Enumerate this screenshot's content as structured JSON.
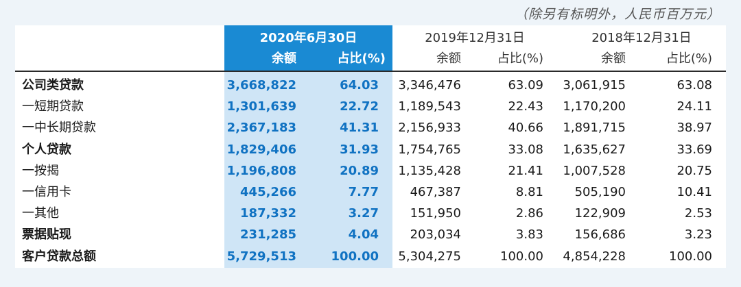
{
  "note": "（除另有标明外，人民币百万元）",
  "headers": {
    "col1": "2020年6月30日",
    "col2": "2019年12月31日",
    "col3": "2018年12月31日",
    "amount": "余额",
    "ratio": "占比(%)"
  },
  "rows": [
    {
      "label": "公司类贷款",
      "bold": true,
      "v": [
        "3,668,822",
        "64.03",
        "3,346,476",
        "63.09",
        "3,061,915",
        "63.08"
      ]
    },
    {
      "label": "一短期贷款",
      "bold": false,
      "v": [
        "1,301,639",
        "22.72",
        "1,189,543",
        "22.43",
        "1,170,200",
        "24.11"
      ]
    },
    {
      "label": "一中长期贷款",
      "bold": false,
      "v": [
        "2,367,183",
        "41.31",
        "2,156,933",
        "40.66",
        "1,891,715",
        "38.97"
      ]
    },
    {
      "label": "个人贷款",
      "bold": true,
      "v": [
        "1,829,406",
        "31.93",
        "1,754,765",
        "33.08",
        "1,635,627",
        "33.69"
      ]
    },
    {
      "label": "一按揭",
      "bold": false,
      "v": [
        "1,196,808",
        "20.89",
        "1,135,428",
        "21.41",
        "1,007,528",
        "20.75"
      ]
    },
    {
      "label": "一信用卡",
      "bold": false,
      "v": [
        "445,266",
        "7.77",
        "467,387",
        "8.81",
        "505,190",
        "10.41"
      ]
    },
    {
      "label": "一其他",
      "bold": false,
      "v": [
        "187,332",
        "3.27",
        "151,950",
        "2.86",
        "122,909",
        "2.53"
      ]
    },
    {
      "label": "票据贴现",
      "bold": true,
      "v": [
        "231,285",
        "4.04",
        "203,034",
        "3.83",
        "156,686",
        "3.23"
      ]
    },
    {
      "label": "客户贷款总额",
      "bold": true,
      "v": [
        "5,729,513",
        "100.00",
        "5,304,275",
        "100.00",
        "4,854,228",
        "100.00"
      ]
    }
  ]
}
